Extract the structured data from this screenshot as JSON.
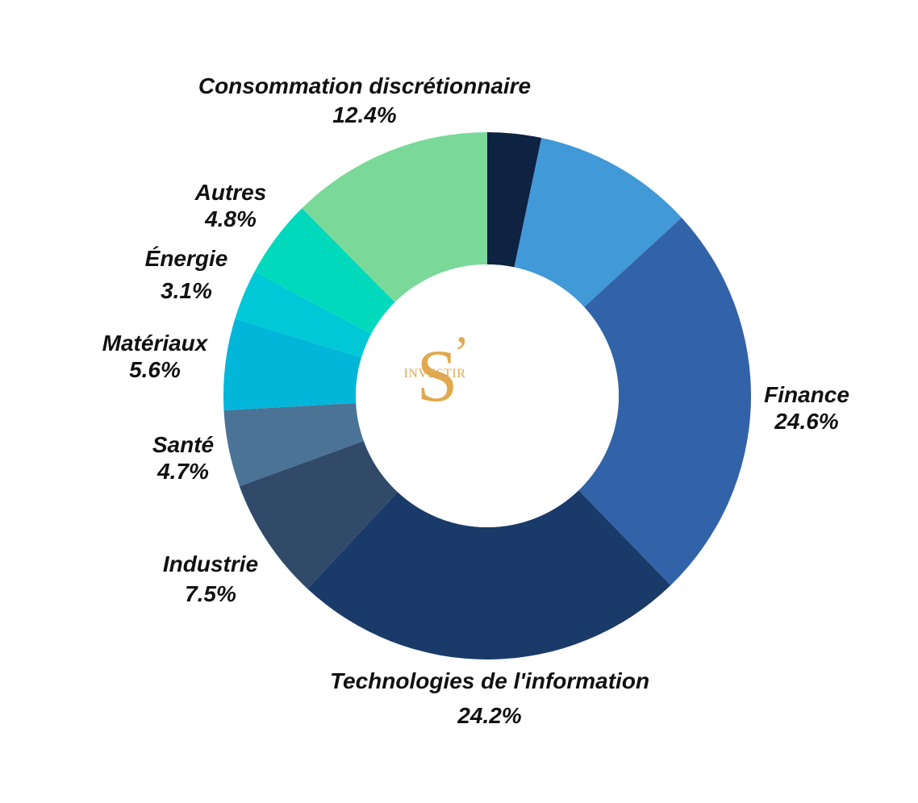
{
  "chart_data": {
    "type": "pie",
    "donut": true,
    "title": "",
    "legend": "none",
    "slices": [
      {
        "name": "",
        "value": 3.3,
        "color": "#0e2242",
        "label": "",
        "pct_label": ""
      },
      {
        "name": "",
        "value": 9.9,
        "color": "#4199d8",
        "label": "",
        "pct_label": ""
      },
      {
        "name": "Finance",
        "value": 24.6,
        "color": "#3263a8",
        "label": "Finance",
        "pct_label": "24.6%"
      },
      {
        "name": "Technologies de l'information",
        "value": 24.2,
        "color": "#1a3a69",
        "label": "Technologies de l'information",
        "pct_label": "24.2%"
      },
      {
        "name": "Industrie",
        "value": 7.5,
        "color": "#324a69",
        "label": "Industrie",
        "pct_label": "7.5%"
      },
      {
        "name": "Santé",
        "value": 4.7,
        "color": "#4a7396",
        "label": "Santé",
        "pct_label": "4.7%"
      },
      {
        "name": "Matériaux",
        "value": 5.6,
        "color": "#02b6da",
        "label": "Matériaux",
        "pct_label": "5.6%"
      },
      {
        "name": "Énergie",
        "value": 3.1,
        "color": "#00c8d6",
        "label": "Énergie",
        "pct_label": "3.1%"
      },
      {
        "name": "Autres",
        "value": 4.8,
        "color": "#01d9bd",
        "label": "Autres",
        "pct_label": "4.8%"
      },
      {
        "name": "Consommation discrétionnaire",
        "value": 12.4,
        "color": "#7ad998",
        "label": "Consommation discrétionnaire",
        "pct_label": "12.4%"
      }
    ]
  },
  "logo": {
    "letter": "S",
    "apostrophe": "’",
    "word": "INVESTIR",
    "color": "#e0a94f"
  }
}
